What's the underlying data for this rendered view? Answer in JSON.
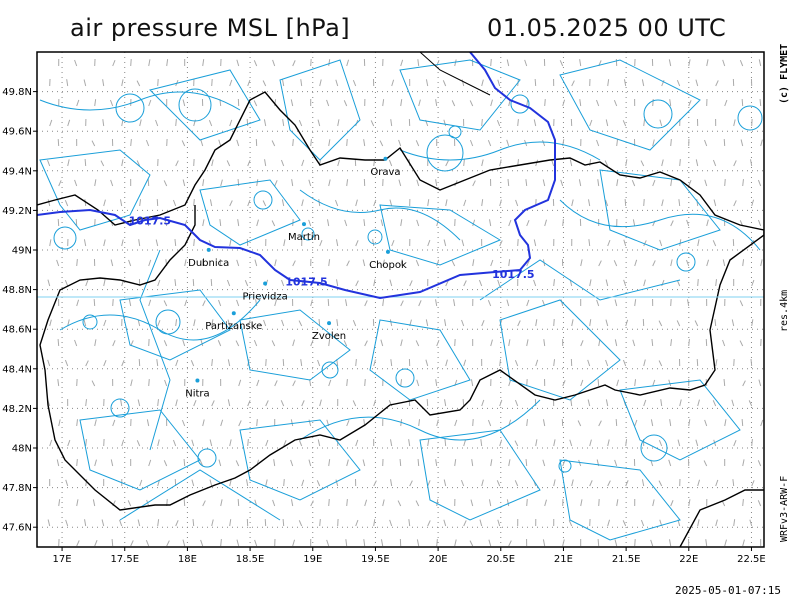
{
  "header": {
    "title": "air pressure MSL [hPa]",
    "datetime": "01.05.2025   00 UTC"
  },
  "side_labels": {
    "copyright": "(c) FLYMET",
    "resolution": "res.4km",
    "model": "WRFv3-ARW-F"
  },
  "footer": {
    "timestamp": "2025-05-01-07:15"
  },
  "map": {
    "lon_range": [
      16.8,
      22.6
    ],
    "lat_range": [
      47.5,
      50.0
    ],
    "y_ticks": [
      {
        "lat": 49.8,
        "label": "49.8N"
      },
      {
        "lat": 49.6,
        "label": "49.6N"
      },
      {
        "lat": 49.4,
        "label": "49.4N"
      },
      {
        "lat": 49.2,
        "label": "49.2N"
      },
      {
        "lat": 49.0,
        "label": "49N"
      },
      {
        "lat": 48.8,
        "label": "48.8N"
      },
      {
        "lat": 48.6,
        "label": "48.6N"
      },
      {
        "lat": 48.4,
        "label": "48.4N"
      },
      {
        "lat": 48.2,
        "label": "48.2N"
      },
      {
        "lat": 48.0,
        "label": "48N"
      },
      {
        "lat": 47.8,
        "label": "47.8N"
      },
      {
        "lat": 47.6,
        "label": "47.6N"
      }
    ],
    "x_ticks": [
      {
        "lon": 17.0,
        "label": "17E"
      },
      {
        "lon": 17.5,
        "label": "17.5E"
      },
      {
        "lon": 18.0,
        "label": "18E"
      },
      {
        "lon": 18.5,
        "label": "18.5E"
      },
      {
        "lon": 19.0,
        "label": "19E"
      },
      {
        "lon": 19.5,
        "label": "19.5E"
      },
      {
        "lon": 20.0,
        "label": "20E"
      },
      {
        "lon": 20.5,
        "label": "20.5E"
      },
      {
        "lon": 21.0,
        "label": "21E"
      },
      {
        "lon": 21.5,
        "label": "21.5E"
      },
      {
        "lon": 22.0,
        "label": "22E"
      },
      {
        "lon": 22.5,
        "label": "22.5E"
      }
    ],
    "cities": [
      {
        "name": "Orava",
        "lon": 19.58,
        "lat": 49.4
      },
      {
        "name": "Martin",
        "lon": 18.93,
        "lat": 49.07
      },
      {
        "name": "Dubnica",
        "lon": 18.17,
        "lat": 48.94
      },
      {
        "name": "Chopok",
        "lon": 19.6,
        "lat": 48.93
      },
      {
        "name": "Prievidza",
        "lon": 18.62,
        "lat": 48.77
      },
      {
        "name": "Partizanske",
        "lon": 18.37,
        "lat": 48.62
      },
      {
        "name": "Zvolen",
        "lon": 19.13,
        "lat": 48.57
      },
      {
        "name": "Nitra",
        "lon": 18.08,
        "lat": 48.28
      }
    ],
    "isobar": {
      "value_label": "1017.5",
      "label_points": [
        {
          "lon": 17.7,
          "lat": 49.15
        },
        {
          "lon": 18.95,
          "lat": 48.84
        },
        {
          "lon": 20.6,
          "lat": 48.88
        }
      ]
    },
    "colors": {
      "border": "#000000",
      "river": "#1a9fd9",
      "isobar": "#2233dd",
      "wind_barb": "#aaaaaa",
      "grid": "#888888"
    }
  }
}
